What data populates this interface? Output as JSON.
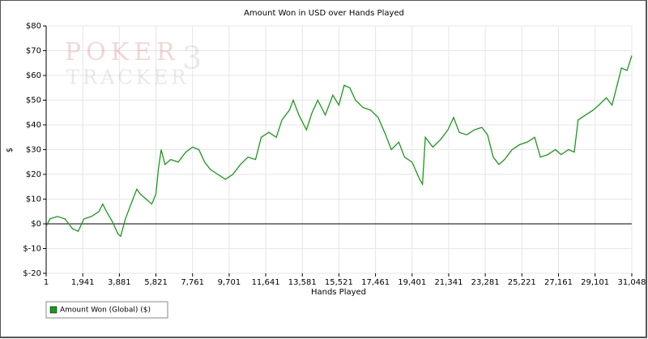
{
  "chart_data": {
    "type": "line",
    "title": "Amount Won in USD over Hands Played",
    "ylabel": "$",
    "xlabel": "Hands Played",
    "watermark": {
      "top": "POKER",
      "bottom": "TRACKER",
      "badge": "3"
    },
    "grid": true,
    "legend": "bottom-left",
    "xlim": [
      1,
      31048
    ],
    "ylim": [
      -20,
      80
    ],
    "xticks": [
      {
        "value": 1,
        "label": "1"
      },
      {
        "value": 1941,
        "label": "1,941"
      },
      {
        "value": 3881,
        "label": "3,881"
      },
      {
        "value": 5821,
        "label": "5,821"
      },
      {
        "value": 7761,
        "label": "7,761"
      },
      {
        "value": 9701,
        "label": "9,701"
      },
      {
        "value": 11641,
        "label": "11,641"
      },
      {
        "value": 13581,
        "label": "13,581"
      },
      {
        "value": 15521,
        "label": "15,521"
      },
      {
        "value": 17461,
        "label": "17,461"
      },
      {
        "value": 19401,
        "label": "19,401"
      },
      {
        "value": 21341,
        "label": "21,341"
      },
      {
        "value": 23281,
        "label": "23,281"
      },
      {
        "value": 25221,
        "label": "25,221"
      },
      {
        "value": 27161,
        "label": "27,161"
      },
      {
        "value": 29101,
        "label": "29,101"
      },
      {
        "value": 31048,
        "label": "31,048"
      }
    ],
    "yticks": [
      {
        "value": 80,
        "label": "$80"
      },
      {
        "value": 70,
        "label": "$70"
      },
      {
        "value": 60,
        "label": "$60"
      },
      {
        "value": 50,
        "label": "$50"
      },
      {
        "value": 40,
        "label": "$40"
      },
      {
        "value": 30,
        "label": "$30"
      },
      {
        "value": 20,
        "label": "$20"
      },
      {
        "value": 10,
        "label": "$10"
      },
      {
        "value": 0,
        "label": "$0"
      },
      {
        "value": -10,
        "label": "$-10"
      },
      {
        "value": -20,
        "label": "$-20"
      }
    ],
    "x": [
      1,
      200,
      600,
      1000,
      1400,
      1700,
      2000,
      2400,
      2800,
      3000,
      3200,
      3500,
      3800,
      3950,
      4200,
      4500,
      4800,
      5000,
      5300,
      5600,
      5821,
      5950,
      6100,
      6300,
      6600,
      7000,
      7400,
      7761,
      8100,
      8400,
      8700,
      9100,
      9500,
      9900,
      10300,
      10700,
      11100,
      11400,
      11800,
      12200,
      12500,
      12900,
      13100,
      13400,
      13800,
      14100,
      14400,
      14800,
      15200,
      15521,
      15800,
      16100,
      16400,
      16800,
      17200,
      17600,
      18000,
      18300,
      18700,
      19000,
      19400,
      19800,
      19950,
      20100,
      20500,
      20900,
      21300,
      21600,
      21900,
      22300,
      22700,
      23100,
      23400,
      23700,
      24000,
      24300,
      24700,
      25100,
      25500,
      25900,
      26200,
      26600,
      27000,
      27300,
      27700,
      28000,
      28200,
      28600,
      29000,
      29300,
      29700,
      30000,
      30200,
      30500,
      30800,
      31048
    ],
    "series": [
      {
        "name": "Amount Won (Global) ($)",
        "color": "#1a9a1a",
        "values": [
          -1,
          2,
          3,
          2,
          -2,
          -3,
          2,
          3,
          5,
          8,
          5,
          1,
          -4,
          -5,
          2,
          8,
          14,
          12,
          10,
          8,
          12,
          22,
          30,
          24,
          26,
          25,
          29,
          31,
          30,
          25,
          22,
          20,
          18,
          20,
          24,
          27,
          26,
          35,
          37,
          35,
          42,
          46,
          50,
          44,
          38,
          45,
          50,
          44,
          52,
          48,
          56,
          55,
          50,
          47,
          46,
          43,
          36,
          30,
          33,
          27,
          25,
          18,
          16,
          35,
          31,
          34,
          38,
          43,
          37,
          36,
          38,
          39,
          36,
          27,
          24,
          26,
          30,
          32,
          33,
          35,
          27,
          28,
          30,
          28,
          30,
          29,
          42,
          44,
          46,
          48,
          51,
          48,
          54,
          63,
          62,
          68
        ]
      }
    ]
  }
}
